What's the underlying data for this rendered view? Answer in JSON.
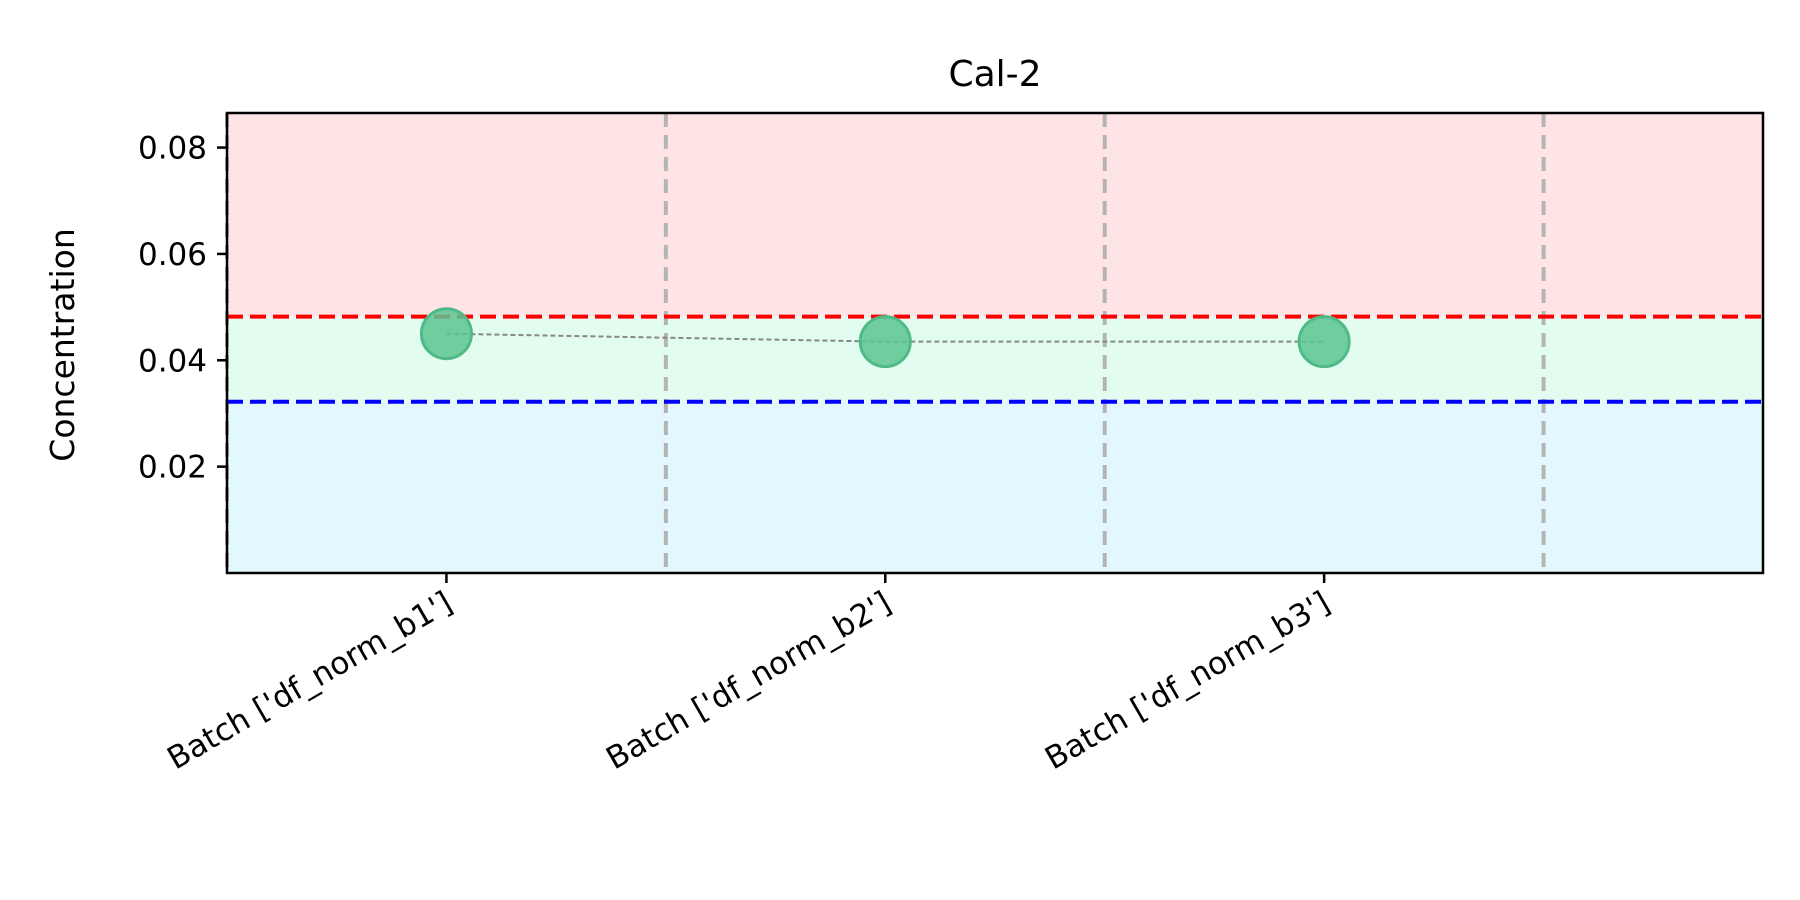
{
  "chart_data": {
    "type": "scatter",
    "title": "Cal-2",
    "xlabel": "",
    "ylabel": "Concentration",
    "categories": [
      "Batch ['df_norm_b1']",
      "Batch ['df_norm_b2']",
      "Batch ['df_norm_b3']"
    ],
    "series": [
      {
        "values": [
          0.045,
          0.0435,
          0.0435
        ],
        "color": "#5cc491"
      }
    ],
    "yticks": [
      "0.02",
      "0.04",
      "0.06",
      "0.08"
    ],
    "ylim": [
      0.0,
      0.0865
    ],
    "upper_limit": 0.0482,
    "lower_limit": 0.0322,
    "upper_limit_color": "#ff0000",
    "lower_limit_color": "#0000ff",
    "zone_colors": {
      "above_upper": "#ffe4e6",
      "within_limits": "#e2fdf0",
      "below_lower": "#e2f7fe"
    },
    "grid": "vertical dashed separators between batches",
    "legend": "none"
  }
}
